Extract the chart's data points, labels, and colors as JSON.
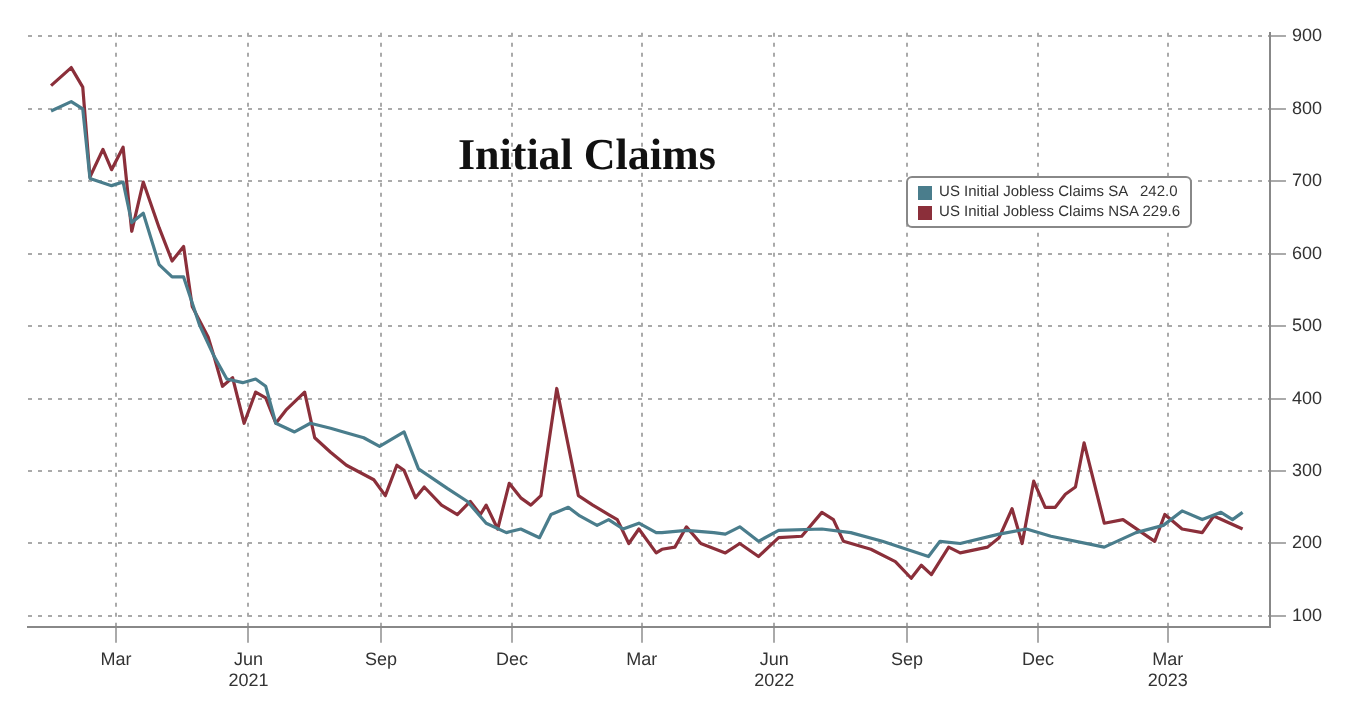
{
  "chart_data": {
    "type": "line",
    "title": "Initial Claims",
    "series": [
      {
        "name": "US Initial Jobless Claims SA   242.0",
        "color": "#4a7d8c",
        "x": [
          "2021-01-15",
          "2021-01-29",
          "2021-02-06",
          "2021-02-11",
          "2021-02-26",
          "2021-03-06",
          "2021-03-12",
          "2021-03-20",
          "2021-03-31",
          "2021-04-09",
          "2021-04-17",
          "2021-04-28",
          "2021-05-08",
          "2021-05-17",
          "2021-05-28",
          "2021-06-06",
          "2021-06-13",
          "2021-06-20",
          "2021-07-03",
          "2021-07-14",
          "2021-07-28",
          "2021-08-06",
          "2021-08-20",
          "2021-08-31",
          "2021-09-17",
          "2021-09-27",
          "2021-10-06",
          "2021-10-17",
          "2021-10-31",
          "2021-11-13",
          "2021-11-27",
          "2021-12-07",
          "2021-12-20",
          "2021-12-28",
          "2022-01-09",
          "2022-01-17",
          "2022-01-29",
          "2022-02-06",
          "2022-02-16",
          "2022-02-27",
          "2022-03-11",
          "2022-03-15",
          "2022-04-01",
          "2022-04-20",
          "2022-04-28",
          "2022-05-08",
          "2022-05-21",
          "2022-06-04",
          "2022-07-04",
          "2022-07-24",
          "2022-08-15",
          "2022-09-16",
          "2022-09-24",
          "2022-10-08",
          "2022-11-04",
          "2022-11-23",
          "2022-12-10",
          "2023-01-16",
          "2023-02-07",
          "2023-02-26",
          "2023-03-11",
          "2023-03-25",
          "2023-04-07",
          "2023-04-15",
          "2023-04-22"
        ],
        "values": [
          797,
          810,
          800,
          704,
          694,
          699,
          643,
          656,
          585,
          568,
          568,
          502,
          459,
          427,
          422,
          427,
          417,
          366,
          354,
          366,
          359,
          354,
          346,
          334,
          354,
          303,
          291,
          276,
          258,
          228,
          215,
          220,
          208,
          240,
          250,
          238,
          225,
          233,
          220,
          228,
          215,
          215,
          218,
          215,
          213,
          223,
          203,
          218,
          220,
          215,
          203,
          182,
          203,
          200,
          213,
          220,
          210,
          195,
          215,
          225,
          245,
          233,
          243,
          233,
          243
        ]
      },
      {
        "name": "US Initial Jobless Claims NSA 229.6",
        "color": "#8b2f3a",
        "x": [
          "2021-01-15",
          "2021-01-29",
          "2021-02-06",
          "2021-02-11",
          "2021-02-20",
          "2021-02-26",
          "2021-03-06",
          "2021-03-12",
          "2021-03-20",
          "2021-03-31",
          "2021-04-09",
          "2021-04-17",
          "2021-04-23",
          "2021-05-04",
          "2021-05-08",
          "2021-05-14",
          "2021-05-21",
          "2021-05-29",
          "2021-06-06",
          "2021-06-13",
          "2021-06-20",
          "2021-06-27",
          "2021-07-10",
          "2021-07-17",
          "2021-07-28",
          "2021-08-08",
          "2021-08-27",
          "2021-09-04",
          "2021-09-12",
          "2021-09-17",
          "2021-09-25",
          "2021-10-01",
          "2021-10-13",
          "2021-10-24",
          "2021-11-02",
          "2021-11-09",
          "2021-11-13",
          "2021-11-21",
          "2021-11-29",
          "2021-12-07",
          "2021-12-14",
          "2021-12-21",
          "2022-01-01",
          "2022-01-16",
          "2022-01-26",
          "2022-02-06",
          "2022-02-12",
          "2022-02-20",
          "2022-02-27",
          "2022-03-11",
          "2022-03-15",
          "2022-03-24",
          "2022-04-01",
          "2022-04-11",
          "2022-04-28",
          "2022-05-08",
          "2022-05-21",
          "2022-06-04",
          "2022-06-20",
          "2022-07-04",
          "2022-07-12",
          "2022-07-19",
          "2022-08-07",
          "2022-08-24",
          "2022-09-04",
          "2022-09-11",
          "2022-09-18",
          "2022-09-30",
          "2022-10-08",
          "2022-10-27",
          "2022-11-04",
          "2022-11-13",
          "2022-11-20",
          "2022-11-28",
          "2022-12-06",
          "2022-12-13",
          "2022-12-20",
          "2022-12-27",
          "2023-01-02",
          "2023-01-16",
          "2023-01-29",
          "2023-02-20",
          "2023-02-27",
          "2023-03-11",
          "2023-03-25",
          "2023-04-02",
          "2023-04-22"
        ],
        "values": [
          832,
          857,
          830,
          706,
          744,
          716,
          747,
          631,
          699,
          636,
          590,
          610,
          527,
          485,
          459,
          417,
          429,
          366,
          409,
          401,
          366,
          384,
          409,
          346,
          326,
          308,
          288,
          266,
          308,
          301,
          263,
          278,
          253,
          240,
          258,
          240,
          253,
          220,
          283,
          263,
          253,
          266,
          414,
          266,
          253,
          240,
          233,
          200,
          220,
          187,
          192,
          195,
          223,
          200,
          187,
          200,
          182,
          208,
          210,
          243,
          233,
          203,
          192,
          175,
          152,
          170,
          157,
          195,
          187,
          195,
          208,
          248,
          200,
          286,
          250,
          250,
          268,
          278,
          339,
          228,
          233,
          203,
          240,
          220,
          215,
          238,
          220
        ]
      }
    ],
    "xlim": [
      "2020-12-30",
      "2023-05-11"
    ],
    "xticks": [
      {
        "value": "2021-03-01",
        "label": "Mar"
      },
      {
        "value": "2021-06-01",
        "label": "Jun\n2021"
      },
      {
        "value": "2021-09-01",
        "label": "Sep"
      },
      {
        "value": "2021-12-01",
        "label": "Dec"
      },
      {
        "value": "2022-03-01",
        "label": "Mar"
      },
      {
        "value": "2022-06-01",
        "label": "Jun\n2022"
      },
      {
        "value": "2022-09-01",
        "label": "Sep"
      },
      {
        "value": "2022-12-01",
        "label": "Dec"
      },
      {
        "value": "2023-03-01",
        "label": "Mar\n2023"
      }
    ],
    "ylim": [
      85,
      905
    ],
    "yticks": [
      100,
      200,
      300,
      400,
      500,
      600,
      700,
      800,
      900
    ],
    "grid": true,
    "legend": "top right",
    "line_style": "solid",
    "marker": "none"
  }
}
